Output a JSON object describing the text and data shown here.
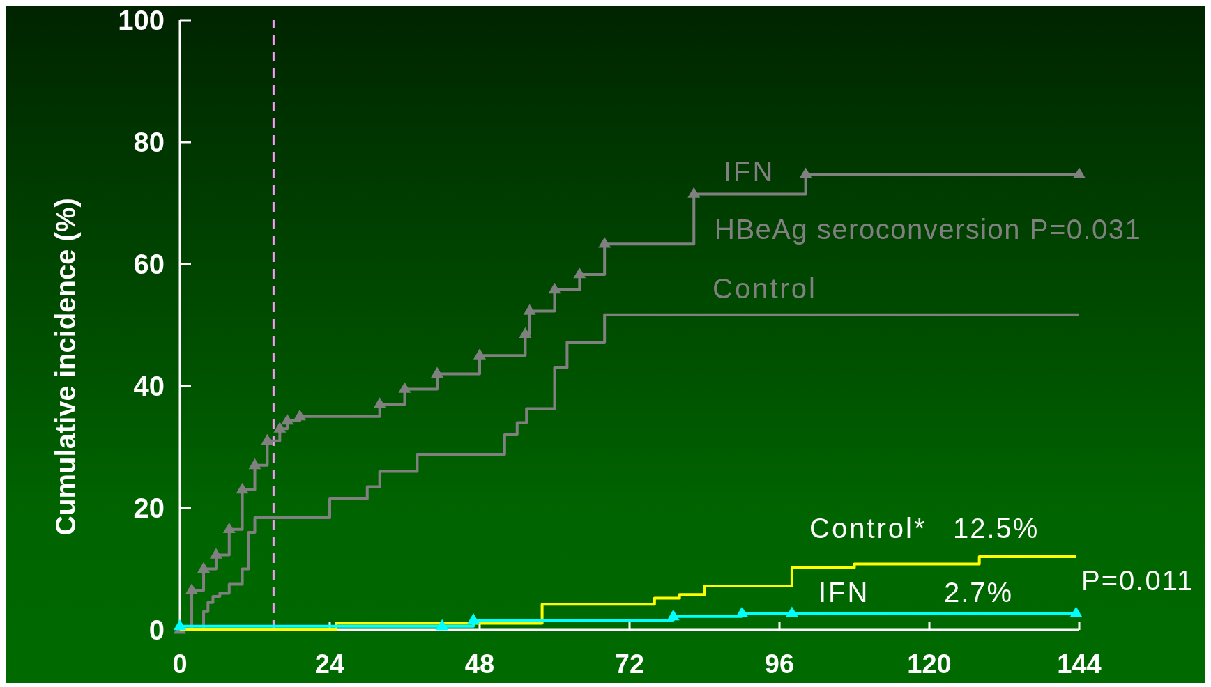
{
  "chart_data": {
    "type": "step",
    "ylabel": "Cumulative incidence (%)",
    "xlim": [
      0,
      144
    ],
    "xticks": [
      0,
      24,
      48,
      72,
      96,
      120,
      144
    ],
    "ylim": [
      0,
      100
    ],
    "yticks": [
      0,
      20,
      40,
      60,
      80,
      100
    ],
    "grid": false,
    "line_style": "solid",
    "series": [
      {
        "name": "IFN",
        "color": "#808080",
        "marker": "triangle",
        "x": [
          0,
          1.9,
          3.8,
          5.8,
          7.9,
          10,
          12,
          14,
          16,
          17.2,
          19.2,
          32,
          36,
          41.2,
          48,
          55.3,
          56,
          60,
          64,
          68,
          82.3,
          100.2,
          144
        ],
        "values": [
          0,
          6.5,
          10,
          12.3,
          16.5,
          23,
          27,
          31,
          33,
          34.3,
          35,
          37,
          39.5,
          42,
          45,
          48.5,
          52.3,
          55.8,
          58.3,
          63.3,
          71.5,
          74.7,
          74.7
        ]
      },
      {
        "name": "Control",
        "color": "#808080",
        "marker": "none",
        "x": [
          0,
          3.8,
          4.5,
          5.3,
          6.4,
          7.9,
          10,
          11,
          12,
          24,
          30,
          32,
          38,
          52,
          54,
          55.5,
          60,
          62,
          68,
          144
        ],
        "values": [
          0,
          3,
          4.5,
          5.5,
          6,
          7.5,
          10,
          16,
          18.4,
          21.5,
          23.5,
          26,
          28.8,
          32,
          34,
          36.3,
          43,
          47.2,
          51.7,
          51.7
        ]
      },
      {
        "name": "Control*",
        "color": "#ffff00",
        "marker": "none",
        "x": [
          0,
          25,
          58,
          76,
          80,
          84,
          98,
          108,
          128,
          143.5
        ],
        "values": [
          0,
          1.1,
          4.2,
          5.2,
          5.8,
          7.2,
          10.2,
          10.8,
          12,
          12
        ]
      },
      {
        "name": "IFN",
        "color": "#00ffff",
        "marker": "triangle",
        "x": [
          0,
          42,
          47,
          79,
          90,
          98,
          143.5
        ],
        "values": [
          0.6,
          0.6,
          1.6,
          2.2,
          2.7,
          2.7,
          2.7
        ]
      }
    ],
    "ref_lines": [
      {
        "axis": "x",
        "value": 15,
        "color": "#ff99ff",
        "line_style": "dashed"
      }
    ],
    "annotations": [
      "HBeAg seroconversion P=0.031",
      "12.5%",
      "2.7%",
      "P=0.011"
    ]
  }
}
